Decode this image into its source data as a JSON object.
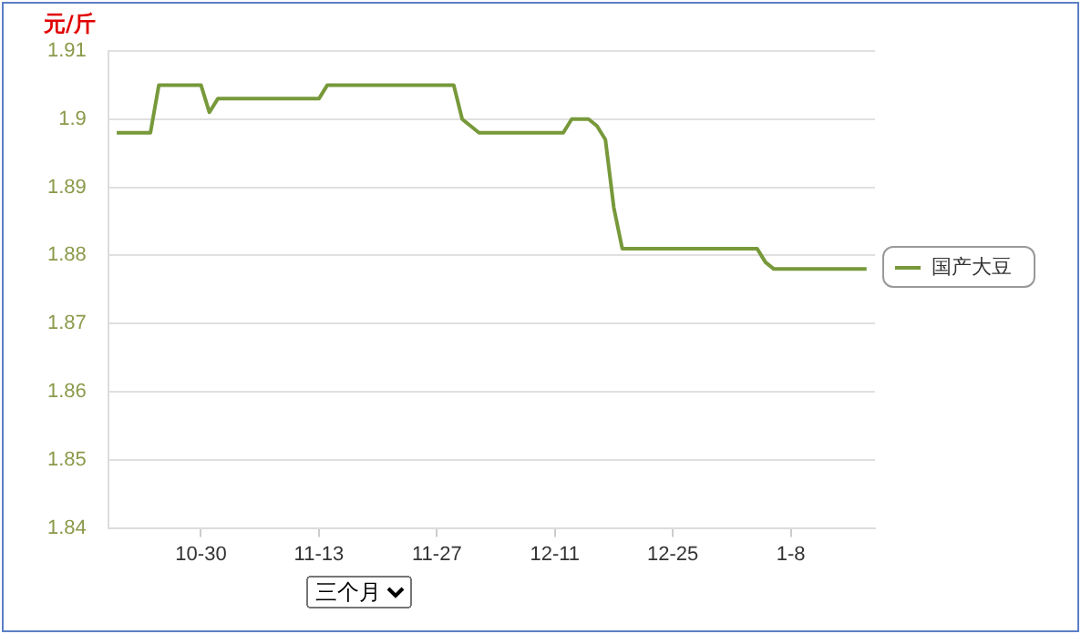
{
  "chart_data": {
    "type": "line",
    "ylabel": "元/斤",
    "categories": [
      null,
      null,
      null,
      null,
      null,
      null,
      null,
      null,
      null,
      null,
      null,
      "10-30",
      null,
      null,
      null,
      null,
      null,
      null,
      null,
      null,
      null,
      null,
      null,
      null,
      null,
      "11-13",
      null,
      null,
      null,
      null,
      null,
      null,
      null,
      null,
      null,
      null,
      null,
      null,
      null,
      "11-27",
      null,
      null,
      null,
      null,
      null,
      null,
      null,
      null,
      null,
      null,
      null,
      null,
      null,
      "12-11",
      null,
      null,
      null,
      null,
      null,
      null,
      null,
      null,
      null,
      null,
      null,
      null,
      null,
      "12-25",
      null,
      null,
      null,
      null,
      null,
      null,
      null,
      null,
      null,
      null,
      null,
      null,
      null,
      "1-8",
      null,
      null,
      null,
      null,
      null,
      null,
      null,
      null,
      null,
      null
    ],
    "series": [
      {
        "name": "国产大豆",
        "color": "#77993a",
        "values": [
          null,
          1.898,
          1.898,
          1.898,
          1.898,
          1.898,
          1.905,
          1.905,
          1.905,
          1.905,
          1.905,
          1.905,
          1.901,
          1.903,
          1.903,
          1.903,
          1.903,
          1.903,
          1.903,
          1.903,
          1.903,
          1.903,
          1.903,
          1.903,
          1.903,
          1.903,
          1.905,
          1.905,
          1.905,
          1.905,
          1.905,
          1.905,
          1.905,
          1.905,
          1.905,
          1.905,
          1.905,
          1.905,
          1.905,
          1.905,
          1.905,
          1.905,
          1.9,
          1.899,
          1.898,
          1.898,
          1.898,
          1.898,
          1.898,
          1.898,
          1.898,
          1.898,
          1.898,
          1.898,
          1.898,
          1.9,
          1.9,
          1.9,
          1.899,
          1.897,
          1.887,
          1.881,
          1.881,
          1.881,
          1.881,
          1.881,
          1.881,
          1.881,
          1.881,
          1.881,
          1.881,
          1.881,
          1.881,
          1.881,
          1.881,
          1.881,
          1.881,
          1.881,
          1.879,
          1.878,
          1.878,
          1.878,
          1.878,
          1.878,
          1.878,
          1.878,
          1.878,
          1.878,
          1.878,
          1.878,
          1.878,
          null
        ]
      }
    ],
    "ylim": [
      1.84,
      1.91
    ],
    "yticks": [
      1.84,
      1.85,
      1.86,
      1.87,
      1.88,
      1.89,
      1.9,
      1.91
    ],
    "grid": "y",
    "legend": "right",
    "marker": "none",
    "line_style": "solid",
    "annotations": [
      "三个月"
    ]
  }
}
